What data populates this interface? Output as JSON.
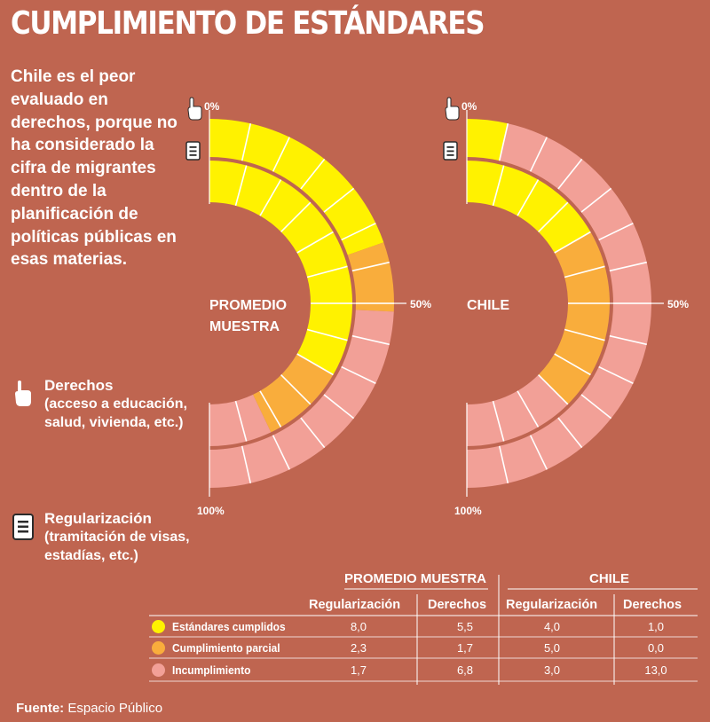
{
  "title": "CUMPLIMIENTO DE ESTÁNDARES",
  "intro_text": "Chile es el peor evaluado en derechos, porque no ha considerado la cifra de migrantes dentro de la planificación de políticas públicas en esas materias.",
  "legend": {
    "derechos": {
      "title": "Derechos",
      "desc": "(acceso a educación, salud, vivienda, etc.)",
      "icon": "hand-icon"
    },
    "regularizacion": {
      "title": "Regularización",
      "desc": "(tramitación de visas, estadías, etc.)",
      "icon": "document-icon"
    }
  },
  "colors": {
    "background": "#bf6550",
    "cumplidos": "#fff200",
    "parcial": "#f9ad3c",
    "incumplimiento": "#f2a097"
  },
  "chart_data": {
    "type": "table",
    "categories": [
      "Estándares cumplidos",
      "Cumplimiento parcial",
      "Incumplimiento"
    ],
    "groups": [
      {
        "name": "PROMEDIO MUESTRA",
        "label_line1": "PROMEDIO",
        "label_line2": "MUESTRA",
        "series": [
          {
            "name": "Regularización",
            "values": [
              8.0,
              2.3,
              1.7
            ],
            "display": [
              "8,0",
              "2,3",
              "1,7"
            ]
          },
          {
            "name": "Derechos",
            "values": [
              5.5,
              1.7,
              6.8
            ],
            "display": [
              "5,5",
              "1,7",
              "6,8"
            ]
          }
        ]
      },
      {
        "name": "CHILE",
        "label_line1": "CHILE",
        "label_line2": "",
        "series": [
          {
            "name": "Regularización",
            "values": [
              4.0,
              5.0,
              3.0
            ],
            "display": [
              "4,0",
              "5,0",
              "3,0"
            ]
          },
          {
            "name": "Derechos",
            "values": [
              1.0,
              0.0,
              13.0
            ],
            "display": [
              "1,0",
              "0,0",
              "13,0"
            ]
          }
        ]
      }
    ],
    "axis_labels": {
      "start": "0%",
      "middle": "50%",
      "end": "100%"
    }
  },
  "source": {
    "label": "Fuente:",
    "text": "Espacio Público"
  }
}
